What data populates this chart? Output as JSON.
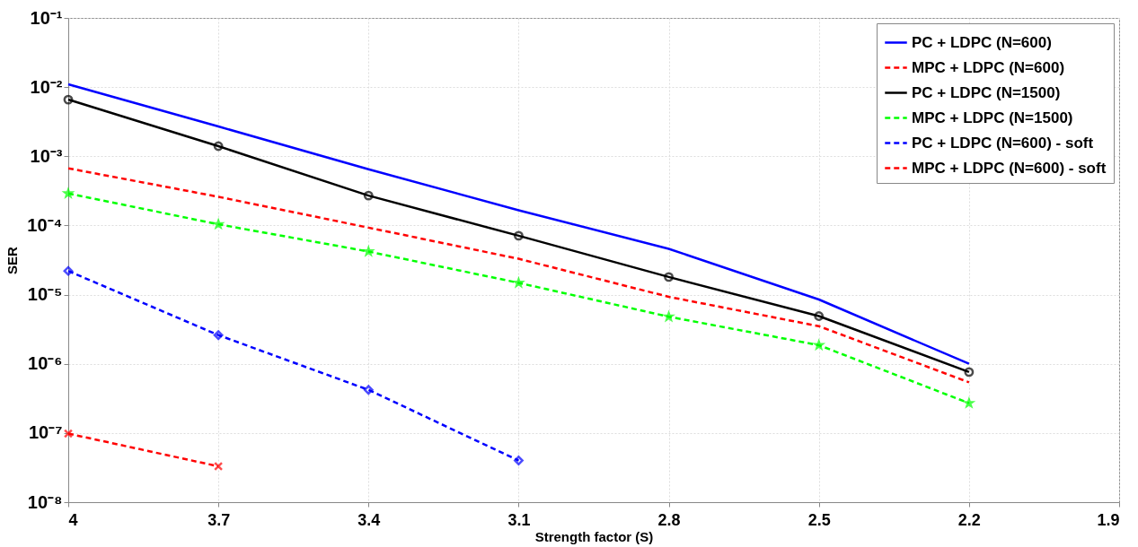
{
  "chart_data": {
    "type": "line",
    "xlabel": "Strength factor (S)",
    "ylabel": "SER",
    "log": "y",
    "grid": true,
    "legend": "top right",
    "x": [
      4,
      3.7,
      3.4,
      3.1,
      2.8,
      2.5,
      2.2
    ],
    "xlim": [
      4,
      1.9
    ],
    "xticks": [
      4,
      3.7,
      3.4,
      3.1,
      2.8,
      2.5,
      2.2,
      1.9
    ],
    "ylim": [
      1e-08,
      0.1
    ],
    "yticks": [
      {
        "value": 1e-08,
        "label": "10⁻⁸"
      },
      {
        "value": 1e-07,
        "label": "10⁻⁷"
      },
      {
        "value": 1e-06,
        "label": "10⁻⁶"
      },
      {
        "value": 1e-05,
        "label": "10⁻⁵"
      },
      {
        "value": 0.0001,
        "label": "10⁻⁴"
      },
      {
        "value": 0.001,
        "label": "10⁻³"
      },
      {
        "value": 0.01,
        "label": "10⁻²"
      },
      {
        "value": 0.1,
        "label": "10⁻¹"
      }
    ],
    "series": [
      {
        "name": "PC + LDPC (N=600)",
        "color": "#0000ff",
        "line_style": "solid",
        "marker": "none",
        "values": [
          0.011,
          0.0027,
          0.00065,
          0.000166,
          4.6e-05,
          8.5e-06,
          1e-06
        ]
      },
      {
        "name": "MPC + LDPC (N=600)",
        "color": "#ff0000",
        "line_style": "dashed",
        "marker": "none",
        "values": [
          0.00067,
          0.00026,
          9.3e-05,
          3.3e-05,
          9.3e-06,
          3.5e-06,
          5.4e-07
        ]
      },
      {
        "name": "PC + LDPC (N=1500)",
        "color": "#000000",
        "line_style": "solid",
        "marker": "circle",
        "values": [
          0.0066,
          0.0014,
          0.00027,
          7.1e-05,
          1.8e-05,
          4.9e-06,
          7.6e-07
        ]
      },
      {
        "name": "MPC + LDPC (N=1500)",
        "color": "#00ff00",
        "line_style": "dashed",
        "marker": "star",
        "values": [
          0.00029,
          0.000104,
          4.2e-05,
          1.48e-05,
          4.8e-06,
          1.86e-06,
          2.7e-07
        ]
      },
      {
        "name": "PC + LDPC (N=600) - soft",
        "color": "#0000ff",
        "line_style": "dashed",
        "marker": "diamond",
        "values": [
          2.2e-05,
          2.6e-06,
          4.2e-07,
          4e-08,
          null,
          null,
          null
        ]
      },
      {
        "name": "MPC + LDPC (N=600) - soft",
        "color": "#ff0000",
        "line_style": "dashed",
        "marker": "cross",
        "values": [
          9.8e-08,
          3.3e-08,
          null,
          null,
          null,
          null,
          null
        ]
      }
    ]
  }
}
